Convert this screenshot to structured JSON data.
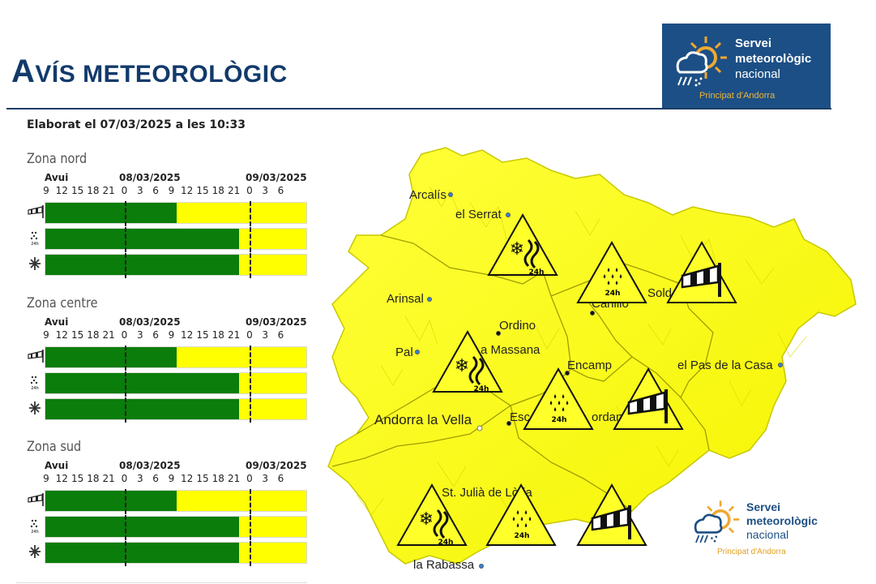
{
  "header": {
    "title_first_letter": "A",
    "title_rest": "VÍS METEOROLÒGIC",
    "elaborated": "Elaborat el 07/03/2025 a les 10:33"
  },
  "logo": {
    "line1": "Servei",
    "line2": "meteorològic",
    "line3": "nacional",
    "sub": "Principat d'Andorra"
  },
  "timeline": {
    "day_labels": [
      "Avui",
      "08/03/2025",
      "09/03/2025"
    ],
    "hours": [
      "9",
      "12",
      "15",
      "18",
      "21",
      "0",
      "3",
      "6",
      "9",
      "12",
      "15",
      "18",
      "21",
      "0",
      "3",
      "6"
    ]
  },
  "zones": [
    {
      "name": "Zona nord",
      "rows": [
        {
          "icon": "wind-icon",
          "green_until_hour_index": 8.3
        },
        {
          "icon": "snow-rain-icon",
          "green_until_hour_index": 12.3
        },
        {
          "icon": "avalanche-icon",
          "green_until_hour_index": 12.3
        }
      ]
    },
    {
      "name": "Zona centre",
      "rows": [
        {
          "icon": "wind-icon",
          "green_until_hour_index": 8.3
        },
        {
          "icon": "snow-rain-icon",
          "green_until_hour_index": 12.3
        },
        {
          "icon": "avalanche-icon",
          "green_until_hour_index": 12.3
        }
      ]
    },
    {
      "name": "Zona sud",
      "rows": [
        {
          "icon": "wind-icon",
          "green_until_hour_index": 8.3
        },
        {
          "icon": "snow-rain-icon",
          "green_until_hour_index": 12.3
        },
        {
          "icon": "avalanche-icon",
          "green_until_hour_index": 12.3
        }
      ]
    }
  ],
  "colors": {
    "warning_yellow": "#ffff00",
    "no_warning_green": "#0a7d0a",
    "brand_blue": "#1c4f85",
    "title_blue": "#123a6b"
  },
  "map": {
    "places": [
      {
        "name": "Arcalís"
      },
      {
        "name": "el Serrat"
      },
      {
        "name": "Arinsal"
      },
      {
        "name": "Ordino"
      },
      {
        "name": "Pal"
      },
      {
        "name": "a Massana"
      },
      {
        "name": "Canillo"
      },
      {
        "name": "Sold"
      },
      {
        "name": "Encamp"
      },
      {
        "name": "el Pas de la Casa"
      },
      {
        "name": "Andorra la Vella"
      },
      {
        "name": "Esc"
      },
      {
        "name": "ordan"
      },
      {
        "name": "St. Julià de Lòria"
      },
      {
        "name": "la Rabassa"
      }
    ],
    "warning_label_24h": "24h",
    "warnings": [
      {
        "type": "snow"
      },
      {
        "type": "snow"
      },
      {
        "type": "snow"
      },
      {
        "type": "rain"
      },
      {
        "type": "rain"
      },
      {
        "type": "rain"
      },
      {
        "type": "wind"
      },
      {
        "type": "wind"
      },
      {
        "type": "wind"
      }
    ]
  }
}
